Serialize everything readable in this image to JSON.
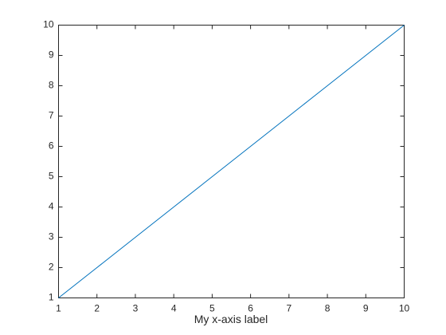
{
  "chart_data": {
    "type": "line",
    "x_label": "My x-axis label",
    "x": [
      1,
      2,
      3,
      4,
      5,
      6,
      7,
      8,
      9,
      10
    ],
    "series": [
      {
        "color": "#0072bd",
        "values": [
          1,
          2,
          3,
          4,
          5,
          6,
          7,
          8,
          9,
          10
        ]
      }
    ],
    "xlim": [
      1,
      10
    ],
    "xticks": [
      1,
      2,
      3,
      4,
      5,
      6,
      7,
      8,
      9,
      10
    ],
    "ylim": [
      1,
      10
    ],
    "yticks": [
      1,
      2,
      3,
      4,
      5,
      6,
      7,
      8,
      9,
      10
    ],
    "grid": false
  }
}
